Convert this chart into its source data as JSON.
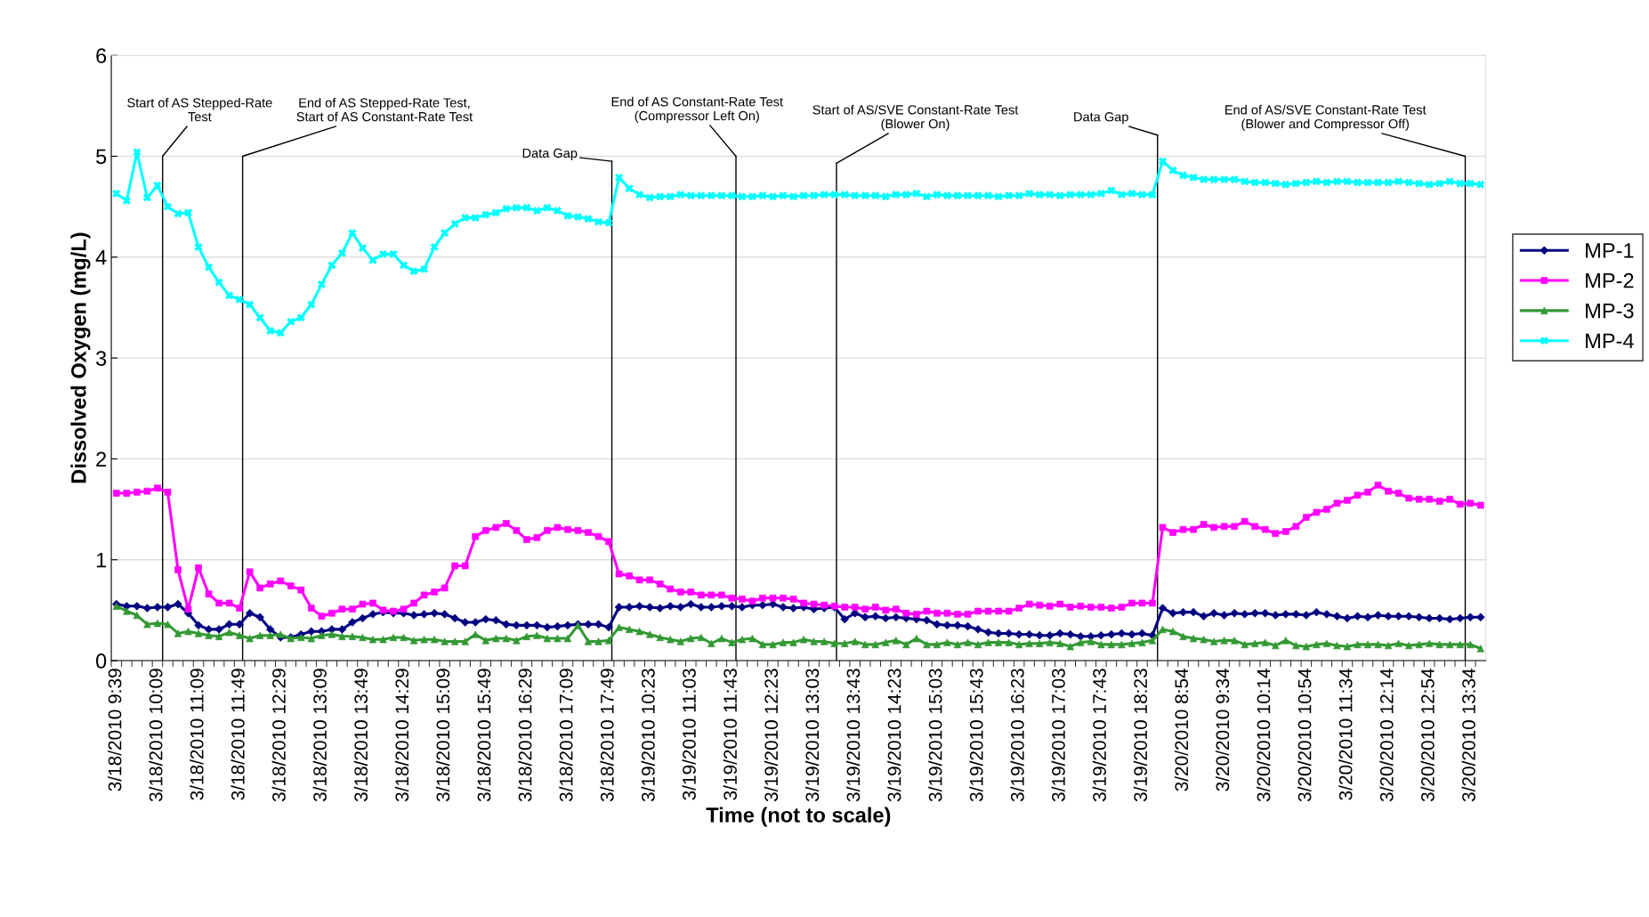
{
  "chart_data": {
    "type": "line",
    "xlabel": "Time (not to scale)",
    "ylabel": "Dissolved Oxygen (mg/L)",
    "categories": [
      "3/18/2010 9:39",
      null,
      null,
      null,
      "3/18/2010 10:09",
      null,
      null,
      null,
      "3/18/2010 11:09",
      null,
      null,
      null,
      "3/18/2010 11:49",
      null,
      null,
      null,
      "3/18/2010 12:29",
      null,
      null,
      null,
      "3/18/2010 13:09",
      null,
      null,
      null,
      "3/18/2010 13:49",
      null,
      null,
      null,
      "3/18/2010 14:29",
      null,
      null,
      null,
      "3/18/2010 15:09",
      null,
      null,
      null,
      "3/18/2010 15:49",
      null,
      null,
      null,
      "3/18/2010 16:29",
      null,
      null,
      null,
      "3/18/2010 17:09",
      null,
      null,
      null,
      "3/18/2010 17:49",
      null,
      null,
      null,
      "3/19/2010 10:23",
      null,
      null,
      null,
      "3/19/2010 11:03",
      null,
      null,
      null,
      "3/19/2010 11:43",
      null,
      null,
      null,
      "3/19/2010 12:23",
      null,
      null,
      null,
      "3/19/2010 13:03",
      null,
      null,
      null,
      "3/19/2010 13:43",
      null,
      null,
      null,
      "3/19/2010 14:23",
      null,
      null,
      null,
      "3/19/2010 15:03",
      null,
      null,
      null,
      "3/19/2010 15:43",
      null,
      null,
      null,
      "3/19/2010 16:23",
      null,
      null,
      null,
      "3/19/2010 17:03",
      null,
      null,
      null,
      "3/19/2010 17:43",
      null,
      null,
      null,
      "3/19/2010 18:23",
      null,
      null,
      null,
      "3/20/2010 8:54",
      null,
      null,
      null,
      "3/20/2010 9:34",
      null,
      null,
      null,
      "3/20/2010 10:14",
      null,
      null,
      null,
      "3/20/2010 10:54",
      null,
      null,
      null,
      "3/20/2010 11:34",
      null,
      null,
      null,
      "3/20/2010 12:14",
      null,
      null,
      null,
      "3/20/2010 12:54",
      null,
      null,
      null,
      "3/20/2010 13:34",
      null
    ],
    "series": [
      {
        "name": "MP-1",
        "color": "#000080",
        "marker": "diamond",
        "values": [
          0.56,
          0.54,
          0.54,
          0.52,
          0.53,
          0.53,
          0.56,
          0.47,
          0.35,
          0.31,
          0.31,
          0.36,
          0.36,
          0.47,
          0.43,
          0.31,
          0.23,
          0.23,
          0.26,
          0.29,
          0.29,
          0.31,
          0.31,
          0.38,
          0.42,
          0.46,
          0.48,
          0.47,
          0.47,
          0.45,
          0.46,
          0.47,
          0.46,
          0.42,
          0.38,
          0.38,
          0.41,
          0.4,
          0.36,
          0.35,
          0.35,
          0.35,
          0.33,
          0.34,
          0.35,
          0.36,
          0.36,
          0.36,
          0.33,
          0.53,
          0.53,
          0.54,
          0.53,
          0.52,
          0.54,
          0.53,
          0.56,
          0.53,
          0.53,
          0.54,
          0.54,
          0.53,
          0.55,
          0.55,
          0.56,
          0.53,
          0.52,
          0.53,
          0.51,
          0.52,
          0.53,
          0.41,
          0.47,
          0.43,
          0.44,
          0.42,
          0.43,
          0.42,
          0.41,
          0.4,
          0.36,
          0.35,
          0.35,
          0.34,
          0.31,
          0.28,
          0.27,
          0.27,
          0.26,
          0.26,
          0.25,
          0.25,
          0.27,
          0.26,
          0.24,
          0.24,
          0.25,
          0.26,
          0.27,
          0.26,
          0.27,
          0.25,
          0.52,
          0.47,
          0.48,
          0.48,
          0.44,
          0.47,
          0.45,
          0.47,
          0.46,
          0.47,
          0.47,
          0.45,
          0.46,
          0.46,
          0.45,
          0.48,
          0.46,
          0.44,
          0.42,
          0.44,
          0.43,
          0.45,
          0.44,
          0.44,
          0.44,
          0.43,
          0.42,
          0.42,
          0.41,
          0.42,
          0.43,
          0.43
        ]
      },
      {
        "name": "MP-2",
        "color": "#ff00ff",
        "marker": "square",
        "values": [
          1.66,
          1.66,
          1.67,
          1.68,
          1.71,
          1.67,
          0.9,
          0.51,
          0.92,
          0.66,
          0.57,
          0.57,
          0.52,
          0.88,
          0.72,
          0.76,
          0.79,
          0.74,
          0.7,
          0.52,
          0.44,
          0.47,
          0.51,
          0.51,
          0.56,
          0.57,
          0.5,
          0.49,
          0.51,
          0.57,
          0.65,
          0.68,
          0.72,
          0.94,
          0.94,
          1.23,
          1.29,
          1.32,
          1.36,
          1.29,
          1.2,
          1.22,
          1.29,
          1.32,
          1.3,
          1.29,
          1.27,
          1.23,
          1.18,
          0.86,
          0.84,
          0.8,
          0.8,
          0.76,
          0.71,
          0.68,
          0.68,
          0.65,
          0.65,
          0.65,
          0.62,
          0.61,
          0.59,
          0.62,
          0.62,
          0.62,
          0.61,
          0.57,
          0.56,
          0.55,
          0.54,
          0.53,
          0.53,
          0.51,
          0.53,
          0.5,
          0.51,
          0.47,
          0.46,
          0.49,
          0.47,
          0.47,
          0.46,
          0.46,
          0.49,
          0.49,
          0.49,
          0.49,
          0.52,
          0.56,
          0.55,
          0.54,
          0.56,
          0.53,
          0.54,
          0.53,
          0.53,
          0.52,
          0.53,
          0.57,
          0.57,
          0.57,
          1.32,
          1.27,
          1.3,
          1.3,
          1.35,
          1.32,
          1.33,
          1.33,
          1.38,
          1.33,
          1.3,
          1.26,
          1.28,
          1.33,
          1.42,
          1.47,
          1.5,
          1.56,
          1.59,
          1.64,
          1.67,
          1.74,
          1.68,
          1.66,
          1.61,
          1.6,
          1.6,
          1.58,
          1.6,
          1.55,
          1.56,
          1.54
        ]
      },
      {
        "name": "MP-3",
        "color": "#339933",
        "marker": "triangle",
        "values": [
          0.54,
          0.49,
          0.45,
          0.36,
          0.37,
          0.36,
          0.27,
          0.29,
          0.27,
          0.25,
          0.24,
          0.28,
          0.25,
          0.22,
          0.25,
          0.25,
          0.26,
          0.22,
          0.23,
          0.22,
          0.25,
          0.26,
          0.24,
          0.24,
          0.23,
          0.21,
          0.21,
          0.23,
          0.23,
          0.2,
          0.21,
          0.21,
          0.19,
          0.19,
          0.19,
          0.26,
          0.2,
          0.22,
          0.22,
          0.2,
          0.24,
          0.25,
          0.22,
          0.22,
          0.22,
          0.35,
          0.19,
          0.19,
          0.2,
          0.33,
          0.31,
          0.29,
          0.26,
          0.23,
          0.21,
          0.19,
          0.22,
          0.23,
          0.17,
          0.22,
          0.18,
          0.21,
          0.22,
          0.16,
          0.16,
          0.18,
          0.18,
          0.21,
          0.19,
          0.19,
          0.17,
          0.17,
          0.19,
          0.16,
          0.16,
          0.18,
          0.2,
          0.16,
          0.22,
          0.16,
          0.16,
          0.18,
          0.16,
          0.18,
          0.16,
          0.18,
          0.18,
          0.18,
          0.16,
          0.17,
          0.17,
          0.18,
          0.17,
          0.14,
          0.18,
          0.19,
          0.16,
          0.16,
          0.16,
          0.17,
          0.18,
          0.2,
          0.31,
          0.29,
          0.24,
          0.22,
          0.21,
          0.19,
          0.2,
          0.2,
          0.16,
          0.17,
          0.18,
          0.15,
          0.2,
          0.15,
          0.14,
          0.16,
          0.17,
          0.15,
          0.14,
          0.16,
          0.16,
          0.16,
          0.15,
          0.17,
          0.15,
          0.16,
          0.17,
          0.16,
          0.16,
          0.16,
          0.16,
          0.12
        ]
      },
      {
        "name": "MP-4",
        "color": "#00ffff",
        "marker": "cross",
        "values": [
          4.63,
          4.56,
          5.04,
          4.59,
          4.71,
          4.5,
          4.43,
          4.44,
          4.1,
          3.9,
          3.75,
          3.62,
          3.58,
          3.53,
          3.4,
          3.27,
          3.25,
          3.36,
          3.4,
          3.53,
          3.73,
          3.92,
          4.04,
          4.24,
          4.09,
          3.97,
          4.03,
          4.03,
          3.92,
          3.86,
          3.88,
          4.1,
          4.24,
          4.33,
          4.39,
          4.39,
          4.42,
          4.44,
          4.48,
          4.49,
          4.49,
          4.46,
          4.49,
          4.46,
          4.41,
          4.4,
          4.38,
          4.35,
          4.34,
          4.79,
          4.68,
          4.62,
          4.59,
          4.6,
          4.6,
          4.62,
          4.61,
          4.61,
          4.61,
          4.61,
          4.61,
          4.6,
          4.6,
          4.61,
          4.6,
          4.61,
          4.6,
          4.61,
          4.61,
          4.62,
          4.62,
          4.62,
          4.61,
          4.61,
          4.61,
          4.6,
          4.62,
          4.62,
          4.63,
          4.6,
          4.62,
          4.61,
          4.61,
          4.61,
          4.61,
          4.61,
          4.6,
          4.61,
          4.61,
          4.63,
          4.62,
          4.62,
          4.61,
          4.62,
          4.62,
          4.62,
          4.63,
          4.66,
          4.62,
          4.63,
          4.62,
          4.62,
          4.95,
          4.86,
          4.81,
          4.79,
          4.77,
          4.77,
          4.77,
          4.77,
          4.75,
          4.74,
          4.74,
          4.73,
          4.72,
          4.73,
          4.74,
          4.75,
          4.74,
          4.75,
          4.75,
          4.74,
          4.74,
          4.74,
          4.74,
          4.75,
          4.74,
          4.73,
          4.72,
          4.73,
          4.75,
          4.73,
          4.73,
          4.72
        ]
      }
    ],
    "ylim": [
      0,
      6
    ],
    "yticks": [
      0,
      1,
      2,
      3,
      4,
      5,
      6
    ],
    "grid": "y",
    "legend": "right",
    "annotations": [
      "Start of AS Stepped-Rate\nTest",
      "End of AS Stepped-Rate Test,\nStart of AS Constant-Rate Test",
      "Data Gap",
      "End of AS Constant-Rate Test\n(Compressor Left On)",
      "Start of AS/SVE Constant-Rate Test\n(Blower On)",
      "Data Gap",
      "End of AS/SVE Constant-Rate Test\n(Blower and Compressor Off)"
    ]
  }
}
